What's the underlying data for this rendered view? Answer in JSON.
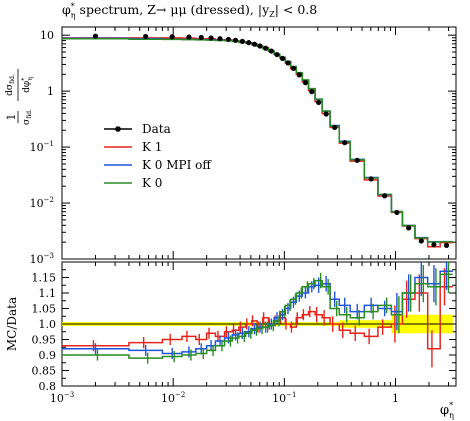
{
  "chart_data": {
    "type": "line",
    "title": "φη* spectrum, Z→ μμ (dressed), |yZ| < 0.8",
    "title_parts": {
      "phi": "φ",
      "phi_sup": "*",
      "phi_sub": "η",
      "rest": " spectrum, Z→ μμ (dressed), |y",
      "y_sub": "Z",
      "tail": "| < 0.8"
    },
    "xlabel": "φη*",
    "xlabel_parts": {
      "phi": "φ",
      "sup": "*",
      "sub": "η"
    },
    "ylabel_main": "1/σfid. dσfid./dφη*",
    "ylabel_main_parts": {
      "one": "1",
      "sigma": "σ",
      "sigma_sub": "fid.",
      "dsigma": "dσ",
      "dsigma_sub": "fid.",
      "dphi": "dφ",
      "dphi_sup": "*",
      "dphi_sub": "η"
    },
    "ylabel_ratio": "MC/Data",
    "x_scale": "log",
    "xlim": [
      0.001,
      3.5
    ],
    "main_ylim": [
      0.001,
      14
    ],
    "main_y_scale": "log",
    "ratio_ylim": [
      0.8,
      1.2
    ],
    "x_ticks": [
      {
        "label_base": "10",
        "label_exp": "−3",
        "value": 0.001
      },
      {
        "label_base": "10",
        "label_exp": "−2",
        "value": 0.01
      },
      {
        "label_base": "10",
        "label_exp": "−1",
        "value": 0.1
      },
      {
        "label_base": "1",
        "label_exp": "",
        "value": 1
      }
    ],
    "main_y_ticks": [
      {
        "label_base": "10",
        "label_exp": "",
        "value": 10
      },
      {
        "label_base": "1",
        "label_exp": "",
        "value": 1
      },
      {
        "label_base": "10",
        "label_exp": "−1",
        "value": 0.1
      },
      {
        "label_base": "10",
        "label_exp": "−2",
        "value": 0.01
      },
      {
        "label_base": "10",
        "label_exp": "−3",
        "value": 0.001
      }
    ],
    "ratio_y_ticks": [
      "0.8",
      "0.85",
      "0.9",
      "0.95",
      "1.0",
      "1.05",
      "1.1",
      "1.15"
    ],
    "legend_position": "left-middle",
    "bin_edges": [
      0.001,
      0.004,
      0.008,
      0.012,
      0.016,
      0.02,
      0.024,
      0.029,
      0.034,
      0.039,
      0.045,
      0.051,
      0.057,
      0.064,
      0.072,
      0.081,
      0.091,
      0.102,
      0.114,
      0.128,
      0.145,
      0.165,
      0.189,
      0.219,
      0.258,
      0.312,
      0.391,
      0.524,
      0.695,
      0.918,
      1.153,
      1.496,
      1.947,
      2.522,
      3.277
    ],
    "data": {
      "name": "Data",
      "color": "#000000",
      "values": [
        9.6,
        9.5,
        9.4,
        9.25,
        9.1,
        8.9,
        8.65,
        8.4,
        8.1,
        7.75,
        7.35,
        6.9,
        6.4,
        5.85,
        5.2,
        4.5,
        3.85,
        3.2,
        2.55,
        1.95,
        1.42,
        0.98,
        0.63,
        0.39,
        0.225,
        0.12,
        0.058,
        0.027,
        0.0135,
        0.0068,
        0.0036,
        0.0021,
        0.0018,
        0.00175
      ]
    },
    "series": [
      {
        "name": "K 1",
        "color": "#e8231b",
        "ratio": [
          0.93,
          0.94,
          0.95,
          0.96,
          0.95,
          0.97,
          0.96,
          0.975,
          0.98,
          0.99,
          1.0,
          1.01,
          0.99,
          1.02,
          1.0,
          1.01,
          1.02,
          1.0,
          0.99,
          1.02,
          1.03,
          1.04,
          1.03,
          1.02,
          1.0,
          0.98,
          0.97,
          0.96,
          0.99,
          1.0,
          1.08,
          1.1,
          0.92,
          1.12
        ]
      },
      {
        "name": "K 0 MPI off",
        "color": "#1f54e0",
        "ratio": [
          0.92,
          0.915,
          0.905,
          0.91,
          0.92,
          0.93,
          0.945,
          0.955,
          0.965,
          0.97,
          0.975,
          0.985,
          0.99,
          0.99,
          1.0,
          1.02,
          1.03,
          1.05,
          1.07,
          1.09,
          1.1,
          1.12,
          1.125,
          1.13,
          1.08,
          1.06,
          1.04,
          1.06,
          1.05,
          1.04,
          1.1,
          1.15,
          1.13,
          1.17
        ]
      },
      {
        "name": "K 0",
        "color": "#2a8c22",
        "ratio": [
          0.9,
          0.89,
          0.895,
          0.9,
          0.905,
          0.915,
          0.93,
          0.945,
          0.955,
          0.96,
          0.97,
          0.98,
          0.985,
          0.99,
          0.995,
          1.01,
          1.04,
          1.06,
          1.08,
          1.1,
          1.12,
          1.13,
          1.14,
          1.12,
          1.05,
          1.03,
          1.02,
          1.04,
          1.06,
          1.03,
          1.1,
          1.13,
          1.12,
          1.16
        ]
      }
    ],
    "legend_labels": [
      "Data",
      "K 1",
      "K 0 MPI off",
      "K 0"
    ],
    "band_color": "#ffff00"
  }
}
